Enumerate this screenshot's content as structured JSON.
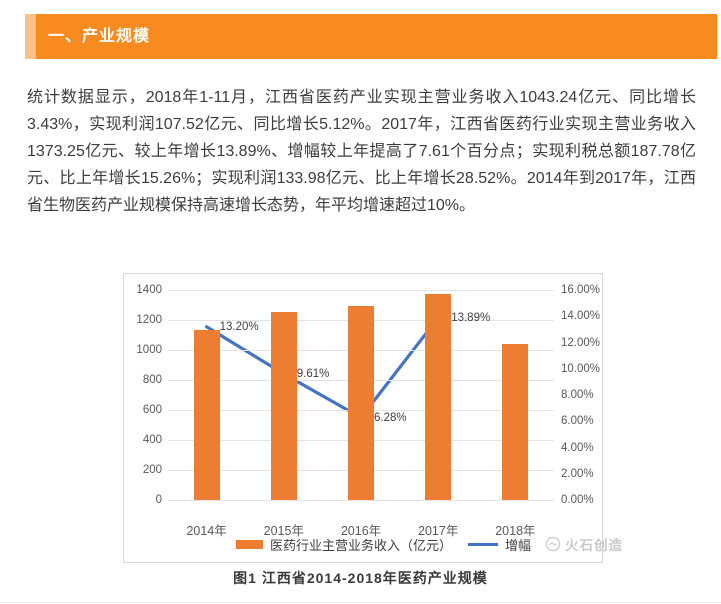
{
  "page": {
    "section_header": "一、产业规模",
    "paragraph": "统计数据显示，2018年1-11月，江西省医药产业实现主营业务收入1043.24亿元、同比增长3.43%，实现利润107.52亿元、同比增长5.12%。2017年，江西省医药行业实现主营业务收入1373.25亿元、较上年增长13.89%、增幅较上年提高了7.61个百分点；实现利税总额187.78亿元、比上年增长15.26%；实现利润133.98亿元、比上年增长28.52%。2014年到2017年，江西省生物医药产业规模保持高速增长态势，年平均增速超过10%。",
    "figure_caption": "图1 江西省2014-2018年医药产业规模",
    "watermark": "火石创造"
  },
  "colors": {
    "banner": "#F78B1F",
    "banner_left_strip": "#FBC38A",
    "bar": "#ED7D31",
    "line": "#4472C4",
    "watermark": "#C9C9C9"
  },
  "chart_data": {
    "type": "bar",
    "subtype": "combo-bar-line-dual-axis",
    "categories": [
      "2014年",
      "2015年",
      "2016年",
      "2017年",
      "2018年"
    ],
    "series": [
      {
        "name": "医药行业主营业务收入（亿元）",
        "type": "bar",
        "axis": "left",
        "values": [
          1133,
          1255,
          1295,
          1373.25,
          1043.24
        ],
        "color": "#ED7D31"
      },
      {
        "name": "增幅",
        "type": "line",
        "axis": "right",
        "values": [
          13.2,
          9.61,
          6.28,
          13.89,
          null
        ],
        "point_labels": [
          "13.20%",
          "9.61%",
          "6.28%",
          "13.89%",
          ""
        ],
        "color": "#4472C4"
      }
    ],
    "left_axis": {
      "min": 0,
      "max": 1400,
      "step": 200,
      "ticks": [
        "1400",
        "1200",
        "1000",
        "800",
        "600",
        "400",
        "200",
        "0"
      ]
    },
    "right_axis": {
      "min": 0,
      "max": 16,
      "step": 2,
      "ticks": [
        "16.00%",
        "14.00%",
        "12.00%",
        "10.00%",
        "8.00%",
        "6.00%",
        "4.00%",
        "2.00%",
        "0.00%"
      ]
    },
    "grid": true,
    "legend_position": "bottom",
    "title": "图1 江西省2014-2018年医药产业规模"
  }
}
